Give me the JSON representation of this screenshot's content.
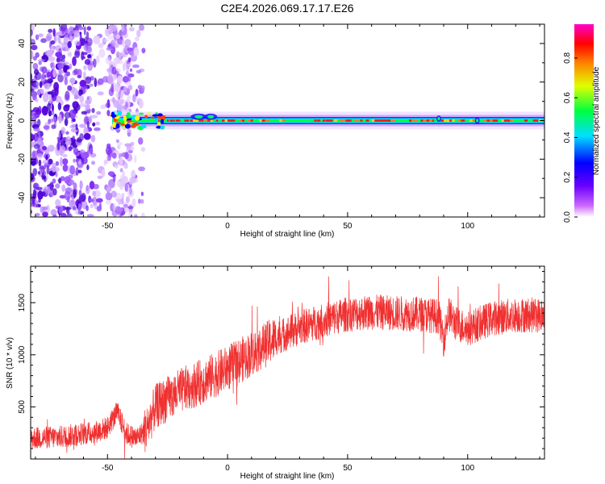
{
  "title": "C2E4.2026.069.17.17.E26",
  "chart_data": [
    {
      "type": "heatmap",
      "xlabel": "Height of straight line (km)",
      "ylabel": "Frequency (Hz)",
      "xlim": [
        -82,
        132
      ],
      "ylim": [
        -50,
        50
      ],
      "x_ticks": [
        -50,
        0,
        50,
        100
      ],
      "y_ticks": [
        -40,
        -20,
        0,
        20,
        40
      ],
      "x_tick_labels": [
        "-50",
        "0",
        "50",
        "100"
      ],
      "y_tick_labels": [
        "-40",
        "-20",
        "0",
        "20",
        "40"
      ],
      "colorbar": {
        "label": "Normalized spectral amplitude",
        "range": [
          0,
          0.97
        ],
        "ticks": [
          0.0,
          0.2,
          0.4,
          0.6,
          0.8
        ],
        "tick_labels": [
          "0.0",
          "0.2",
          "0.4",
          "0.6",
          "0.8"
        ],
        "colormap": "rainbow (white-violet-blue-cyan-green-yellow-red-magenta)"
      },
      "features": {
        "noise_region_x": [
          -82,
          -35
        ],
        "signal_line_freq_hz": 0,
        "signal_start_x": -48,
        "signal_end_x": 132
      }
    },
    {
      "type": "line",
      "xlabel": "Height of straight line (km)",
      "ylabel": "SNR (10 * v/v)",
      "xlim": [
        -82,
        132
      ],
      "ylim": [
        0,
        1850
      ],
      "x_ticks": [
        -50,
        0,
        50,
        100
      ],
      "y_ticks": [
        500,
        1000,
        1500
      ],
      "x_tick_labels": [
        "-50",
        "0",
        "50",
        "100"
      ],
      "y_tick_labels": [
        "500",
        "1000",
        "1500"
      ],
      "series": [
        {
          "color": "#f03030",
          "x": [
            -82,
            -70,
            -55,
            -50,
            -46,
            -42,
            -38,
            -34,
            -30,
            -20,
            -10,
            0,
            10,
            20,
            30,
            40,
            50,
            60,
            70,
            80,
            88,
            90,
            92,
            95,
            100,
            110,
            120,
            132
          ],
          "y": [
            200,
            210,
            260,
            300,
            450,
            240,
            200,
            280,
            500,
            650,
            750,
            870,
            1010,
            1160,
            1260,
            1330,
            1390,
            1410,
            1400,
            1390,
            1370,
            1150,
            1400,
            1300,
            1250,
            1350,
            1380,
            1380
          ]
        }
      ]
    }
  ]
}
